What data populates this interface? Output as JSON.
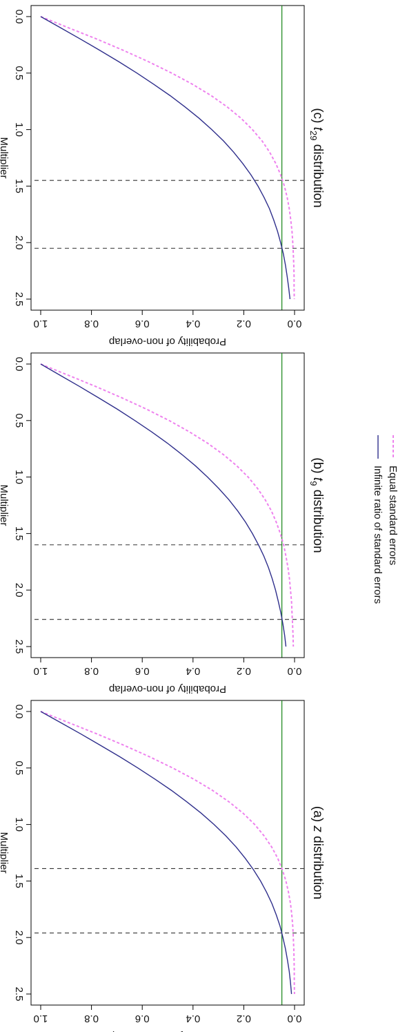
{
  "chart_data": [
    {
      "type": "line",
      "panel": "a",
      "title_prefix": "(a) ",
      "title_var": "z",
      "title_sub": "",
      "title_suffix": " distribution",
      "xlabel": "Multiplier",
      "ylabel": "Probability of non-overlap",
      "xlim": [
        0,
        2.5
      ],
      "ylim": [
        0,
        1
      ],
      "x_ticks": [
        "0.0",
        "0.5",
        "1.0",
        "1.5",
        "2.0",
        "2.5"
      ],
      "y_ticks": [
        "0.0",
        "0.2",
        "0.4",
        "0.6",
        "0.8",
        "1.0"
      ],
      "reference_line_y": 0.05,
      "vertical_dashed_x": [
        1.39,
        1.96
      ],
      "series": [
        {
          "label": "Equal standard errors",
          "color": "#ee82ee",
          "style": "dashed",
          "x": [
            0,
            0.1,
            0.2,
            0.3,
            0.4,
            0.5,
            0.6,
            0.7,
            0.8,
            0.9,
            1.0,
            1.1,
            1.2,
            1.3,
            1.4,
            1.5,
            1.6,
            1.7,
            1.8,
            1.9,
            2.0,
            2.1,
            2.2,
            2.3,
            2.4,
            2.5
          ],
          "y": [
            1.0,
            0.888,
            0.777,
            0.671,
            0.572,
            0.48,
            0.396,
            0.322,
            0.258,
            0.203,
            0.157,
            0.12,
            0.09,
            0.066,
            0.048,
            0.034,
            0.024,
            0.016,
            0.011,
            0.007,
            0.005,
            0.003,
            0.002,
            0.001,
            0.001,
            0.0004
          ]
        },
        {
          "label": "Infinite ratio of standard errors",
          "color": "#2e2e8b",
          "style": "solid",
          "x": [
            0,
            0.1,
            0.2,
            0.3,
            0.4,
            0.5,
            0.6,
            0.7,
            0.8,
            0.9,
            1.0,
            1.1,
            1.2,
            1.3,
            1.4,
            1.5,
            1.6,
            1.7,
            1.8,
            1.9,
            2.0,
            2.1,
            2.2,
            2.3,
            2.4,
            2.5
          ],
          "y": [
            1.0,
            0.92,
            0.841,
            0.764,
            0.689,
            0.617,
            0.549,
            0.484,
            0.424,
            0.368,
            0.317,
            0.271,
            0.23,
            0.194,
            0.162,
            0.134,
            0.11,
            0.089,
            0.072,
            0.057,
            0.046,
            0.036,
            0.028,
            0.021,
            0.016,
            0.012
          ]
        }
      ]
    },
    {
      "type": "line",
      "panel": "b",
      "title_prefix": "(b) ",
      "title_var": "t",
      "title_sub": "9",
      "title_suffix": " distribution",
      "xlabel": "Multiplier",
      "ylabel": "Probability of non-overlap",
      "xlim": [
        0,
        2.5
      ],
      "ylim": [
        0,
        1
      ],
      "x_ticks": [
        "0.0",
        "0.5",
        "1.0",
        "1.5",
        "2.0",
        "2.5"
      ],
      "y_ticks": [
        "0.0",
        "0.2",
        "0.4",
        "0.6",
        "0.8",
        "1.0"
      ],
      "reference_line_y": 0.05,
      "vertical_dashed_x": [
        1.6,
        2.26
      ],
      "series": [
        {
          "label": "Equal standard errors",
          "color": "#ee82ee",
          "style": "dashed",
          "x": [
            0,
            0.1,
            0.2,
            0.3,
            0.4,
            0.5,
            0.6,
            0.7,
            0.8,
            0.9,
            1.0,
            1.1,
            1.2,
            1.3,
            1.4,
            1.5,
            1.6,
            1.7,
            1.8,
            1.9,
            2.0,
            2.1,
            2.2,
            2.3,
            2.4,
            2.5
          ],
          "y": [
            1.0,
            0.89,
            0.782,
            0.679,
            0.583,
            0.494,
            0.414,
            0.343,
            0.281,
            0.228,
            0.183,
            0.146,
            0.116,
            0.091,
            0.072,
            0.056,
            0.043,
            0.034,
            0.026,
            0.02,
            0.016,
            0.012,
            0.01,
            0.008,
            0.006,
            0.005
          ]
        },
        {
          "label": "Infinite ratio of standard errors",
          "color": "#2e2e8b",
          "style": "solid",
          "x": [
            0,
            0.1,
            0.2,
            0.3,
            0.4,
            0.5,
            0.6,
            0.7,
            0.8,
            0.9,
            1.0,
            1.1,
            1.2,
            1.3,
            1.4,
            1.5,
            1.6,
            1.7,
            1.8,
            1.9,
            2.0,
            2.1,
            2.2,
            2.3,
            2.4,
            2.5
          ],
          "y": [
            1.0,
            0.923,
            0.846,
            0.771,
            0.698,
            0.629,
            0.563,
            0.501,
            0.444,
            0.391,
            0.343,
            0.299,
            0.259,
            0.224,
            0.193,
            0.166,
            0.142,
            0.121,
            0.103,
            0.088,
            0.075,
            0.064,
            0.054,
            0.046,
            0.039,
            0.034
          ]
        }
      ]
    },
    {
      "type": "line",
      "panel": "c",
      "title_prefix": "(c) ",
      "title_var": "t",
      "title_sub": "29",
      "title_suffix": " distribution",
      "xlabel": "Multiplier",
      "ylabel": "Probability of non-overlap",
      "xlim": [
        0,
        2.5
      ],
      "ylim": [
        0,
        1
      ],
      "x_ticks": [
        "0.0",
        "0.5",
        "1.0",
        "1.5",
        "2.0",
        "2.5"
      ],
      "y_ticks": [
        "0.0",
        "0.2",
        "0.4",
        "0.6",
        "0.8",
        "1.0"
      ],
      "reference_line_y": 0.05,
      "vertical_dashed_x": [
        1.45,
        2.05
      ],
      "series": [
        {
          "label": "Equal standard errors",
          "color": "#ee82ee",
          "style": "dashed",
          "x": [
            0,
            0.1,
            0.2,
            0.3,
            0.4,
            0.5,
            0.6,
            0.7,
            0.8,
            0.9,
            1.0,
            1.1,
            1.2,
            1.3,
            1.4,
            1.5,
            1.6,
            1.7,
            1.8,
            1.9,
            2.0,
            2.1,
            2.2,
            2.3,
            2.4,
            2.5
          ],
          "y": [
            1.0,
            0.889,
            0.778,
            0.673,
            0.575,
            0.484,
            0.401,
            0.328,
            0.265,
            0.211,
            0.166,
            0.128,
            0.098,
            0.074,
            0.055,
            0.04,
            0.029,
            0.021,
            0.015,
            0.01,
            0.007,
            0.005,
            0.003,
            0.002,
            0.002,
            0.001
          ]
        },
        {
          "label": "Infinite ratio of standard errors",
          "color": "#2e2e8b",
          "style": "solid",
          "x": [
            0,
            0.1,
            0.2,
            0.3,
            0.4,
            0.5,
            0.6,
            0.7,
            0.8,
            0.9,
            1.0,
            1.1,
            1.2,
            1.3,
            1.4,
            1.5,
            1.6,
            1.7,
            1.8,
            1.9,
            2.0,
            2.1,
            2.2,
            2.3,
            2.4,
            2.5
          ],
          "y": [
            1.0,
            0.921,
            0.843,
            0.766,
            0.692,
            0.621,
            0.554,
            0.49,
            0.431,
            0.376,
            0.326,
            0.28,
            0.24,
            0.204,
            0.172,
            0.144,
            0.12,
            0.099,
            0.082,
            0.067,
            0.055,
            0.044,
            0.036,
            0.029,
            0.023,
            0.018
          ]
        }
      ]
    }
  ],
  "legend": {
    "items": [
      {
        "label": "Equal standard errors",
        "color": "#ee82ee",
        "style": "dashed"
      },
      {
        "label": "Infinite ratio of standard errors",
        "color": "#2e2e8b",
        "style": "solid"
      }
    ]
  },
  "colors": {
    "reference_line": "#228b22",
    "dashed_guides": "#333333"
  }
}
